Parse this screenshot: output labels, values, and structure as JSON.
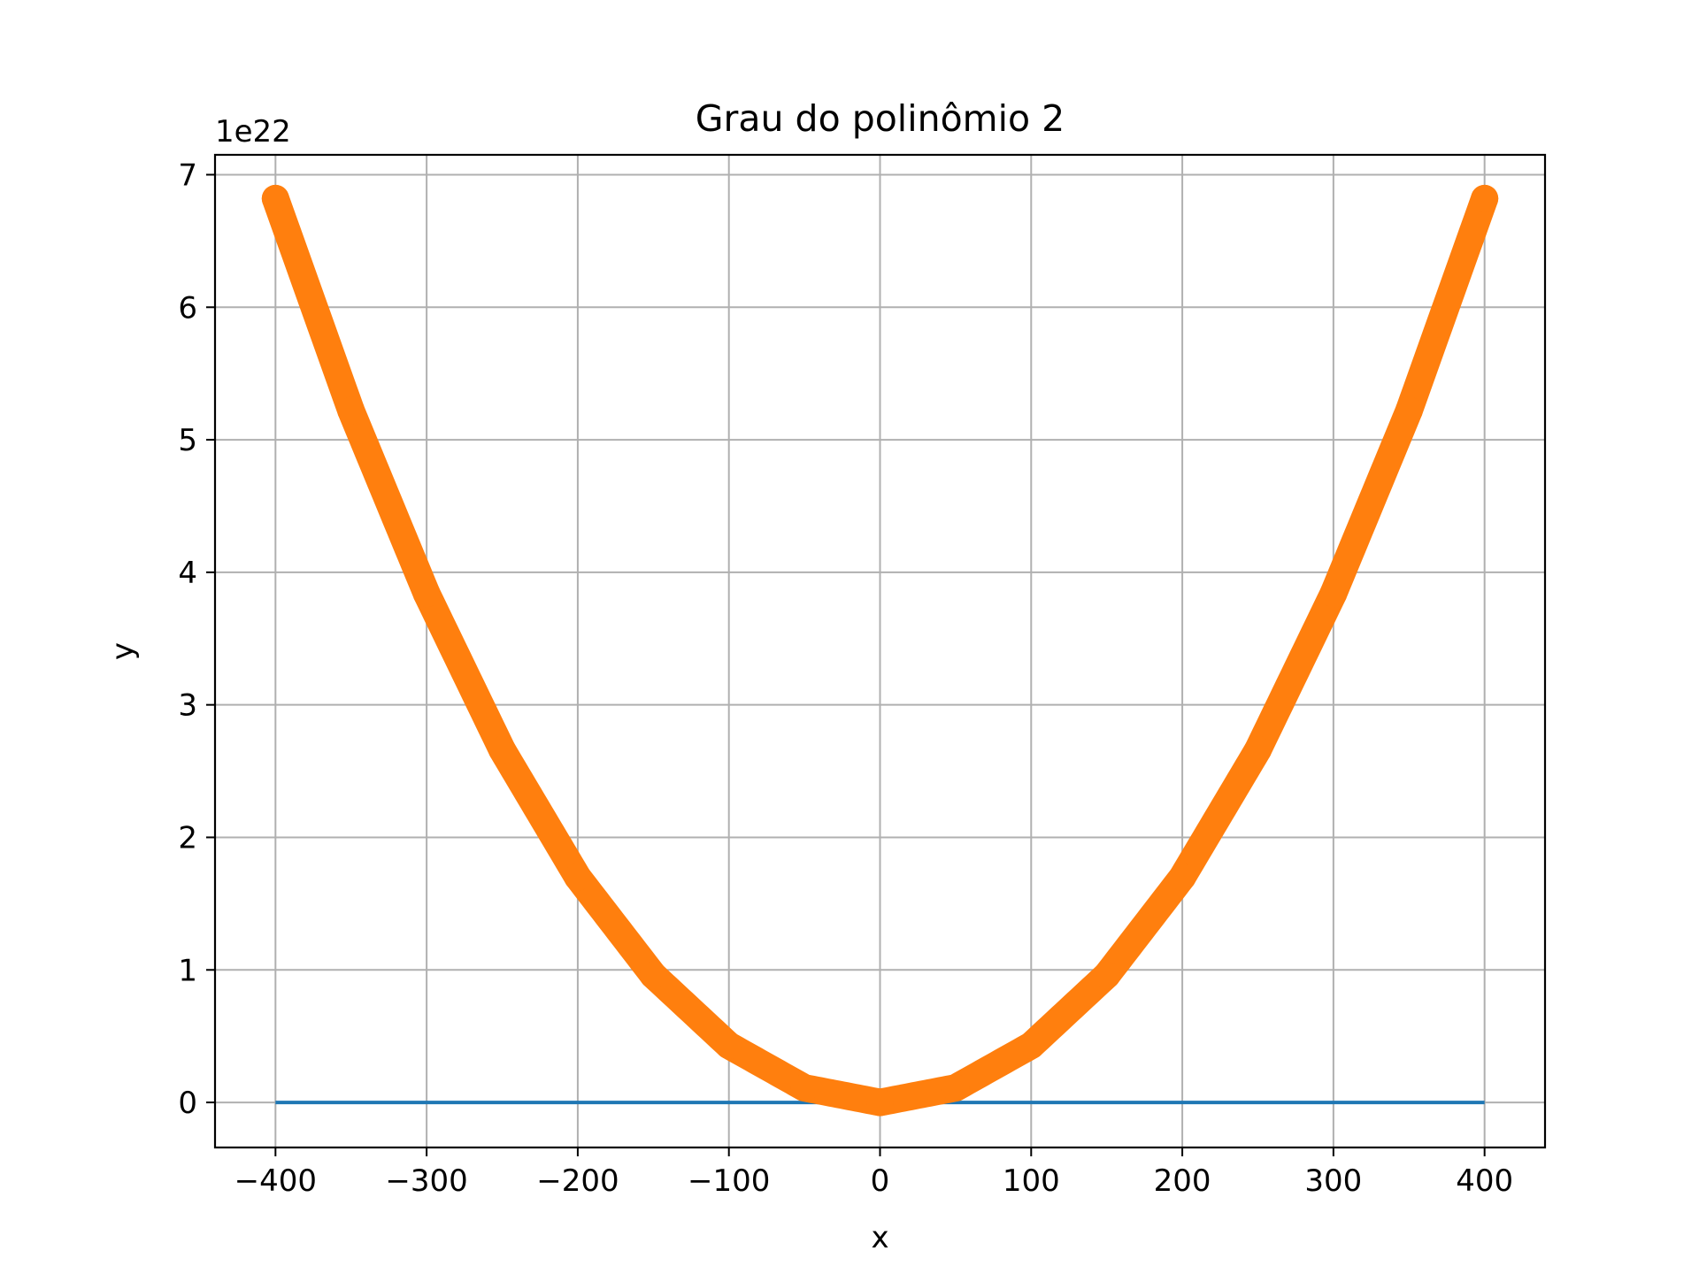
{
  "chart_data": {
    "type": "line",
    "title": "Grau do polinômio 2",
    "xlabel": "x",
    "ylabel": "y",
    "y_offset_label": "1e22",
    "xlim": [
      -440,
      440
    ],
    "ylim": [
      -0.34,
      7.15
    ],
    "y_scale_factor": 1e+22,
    "grid": true,
    "x_ticks": [
      -400,
      -300,
      -200,
      -100,
      0,
      100,
      200,
      300,
      400
    ],
    "x_tick_labels": [
      "−400",
      "−300",
      "−200",
      "−100",
      "0",
      "100",
      "200",
      "300",
      "400"
    ],
    "y_ticks": [
      0,
      1,
      2,
      3,
      4,
      5,
      6,
      7
    ],
    "y_tick_labels": [
      "0",
      "1",
      "2",
      "3",
      "4",
      "5",
      "6",
      "7"
    ],
    "series": [
      {
        "color": "#1f77b4",
        "style": "thin-line",
        "x": [
          -400,
          400
        ],
        "y": [
          0,
          0
        ]
      },
      {
        "color": "#ff7f0e",
        "style": "thick-markers",
        "x": [
          -400,
          -350,
          -300,
          -250,
          -200,
          -150,
          -100,
          -50,
          0,
          50,
          100,
          150,
          200,
          250,
          300,
          350,
          400
        ],
        "y": [
          6.82,
          5.22,
          3.84,
          2.66,
          1.7,
          0.96,
          0.43,
          0.11,
          0.0,
          0.11,
          0.43,
          0.96,
          1.7,
          2.66,
          3.84,
          5.22,
          6.82
        ]
      }
    ]
  }
}
